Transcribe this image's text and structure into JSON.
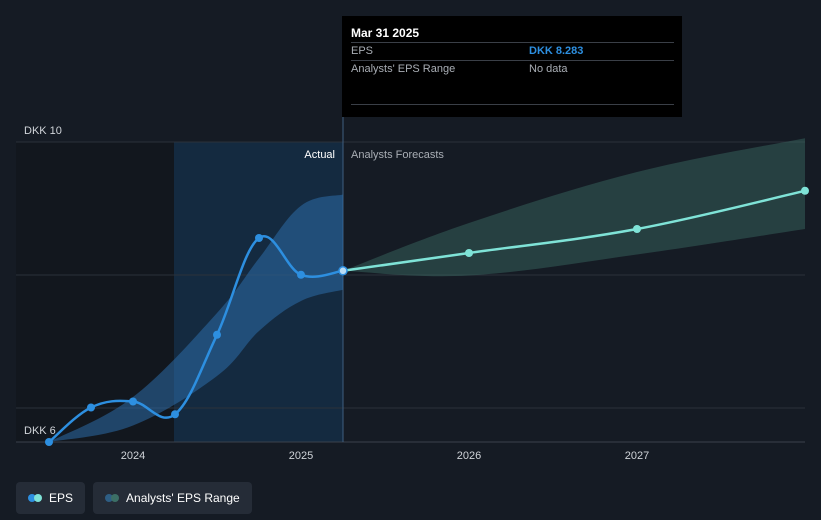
{
  "chart_data": {
    "type": "line",
    "ylim": [
      6,
      10
    ],
    "y_labels": [
      "DKK 10",
      "DKK 6"
    ],
    "x_ticks": [
      "2024",
      "2025",
      "2026",
      "2027"
    ],
    "section_labels": {
      "actual": "Actual",
      "forecast": "Analysts Forecasts"
    },
    "series": [
      {
        "name": "EPS (actual)",
        "points": [
          [
            2023.5,
            6.0
          ],
          [
            2023.75,
            6.46
          ],
          [
            2024.0,
            6.54
          ],
          [
            2024.25,
            6.37
          ],
          [
            2024.5,
            7.43
          ],
          [
            2024.75,
            8.72
          ],
          [
            2025.0,
            8.23
          ],
          [
            2025.25,
            8.283
          ]
        ]
      },
      {
        "name": "EPS (forecast)",
        "points": [
          [
            2025.25,
            8.283
          ],
          [
            2026.0,
            8.52
          ],
          [
            2027.0,
            8.84
          ],
          [
            2028.0,
            9.35
          ]
        ]
      }
    ],
    "actual_range": {
      "points": [
        [
          2023.5,
          6.0,
          6.0
        ],
        [
          2024.0,
          6.6,
          6.22
        ],
        [
          2024.5,
          7.72,
          6.88
        ],
        [
          2024.75,
          8.45,
          7.48
        ],
        [
          2025.0,
          9.15,
          7.88
        ],
        [
          2025.25,
          9.3,
          8.03
        ]
      ]
    },
    "forecast_range": {
      "points": [
        [
          2025.25,
          8.283,
          8.283
        ],
        [
          2026.0,
          8.92,
          8.22
        ],
        [
          2027.0,
          9.6,
          8.5
        ],
        [
          2028.0,
          10.05,
          8.84
        ]
      ]
    }
  },
  "tooltip": {
    "date": "Mar 31 2025",
    "rows": [
      {
        "label": "EPS",
        "value": "DKK 8.283"
      },
      {
        "label": "Analysts' EPS Range",
        "value": "No data"
      }
    ]
  },
  "legend": [
    {
      "label": "EPS",
      "color1": "#2d8fe0",
      "color2": "#7fe3d7"
    },
    {
      "label": "Analysts' EPS Range",
      "color1": "#2e5e84",
      "color2": "#3c6f66"
    }
  ],
  "colors": {
    "eps": "#2d8fe0",
    "forecast": "#7fe3d7",
    "actual_band": "#2b6ca8",
    "forecast_band": "#3c6f66",
    "grid": "#2b313a",
    "text": "#d0d4d9"
  }
}
